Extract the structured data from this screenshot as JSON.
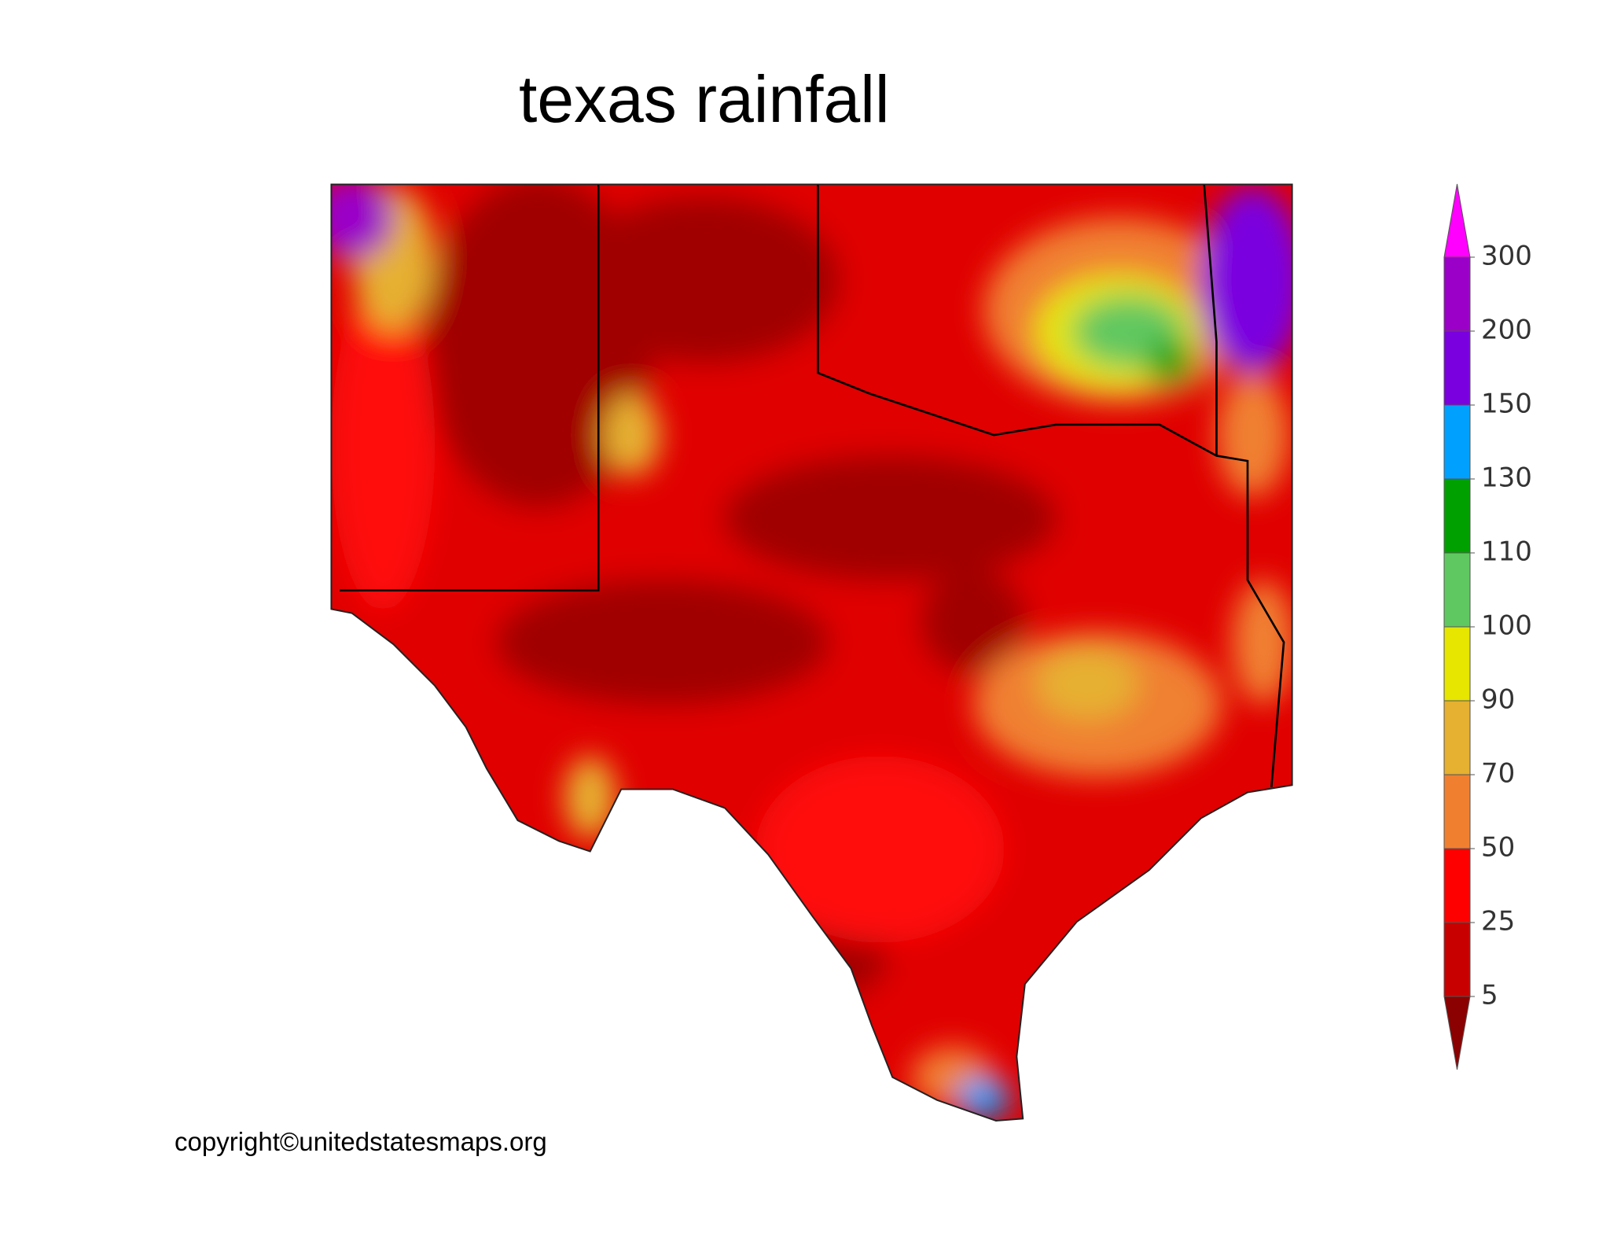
{
  "title": "texas rainfall",
  "copyright": "copyright©unitedstatesmaps.org",
  "legend": {
    "ticks": [
      300,
      200,
      150,
      130,
      110,
      100,
      90,
      70,
      50,
      25,
      5
    ],
    "colors": [
      "#9a00c8",
      "#7a00e0",
      "#00a0ff",
      "#00a000",
      "#60c860",
      "#e6e600",
      "#e6b030",
      "#f08030",
      "#ff0000",
      "#c80000"
    ],
    "over_color": "#ff00ff",
    "under_color": "#8b0000"
  }
}
